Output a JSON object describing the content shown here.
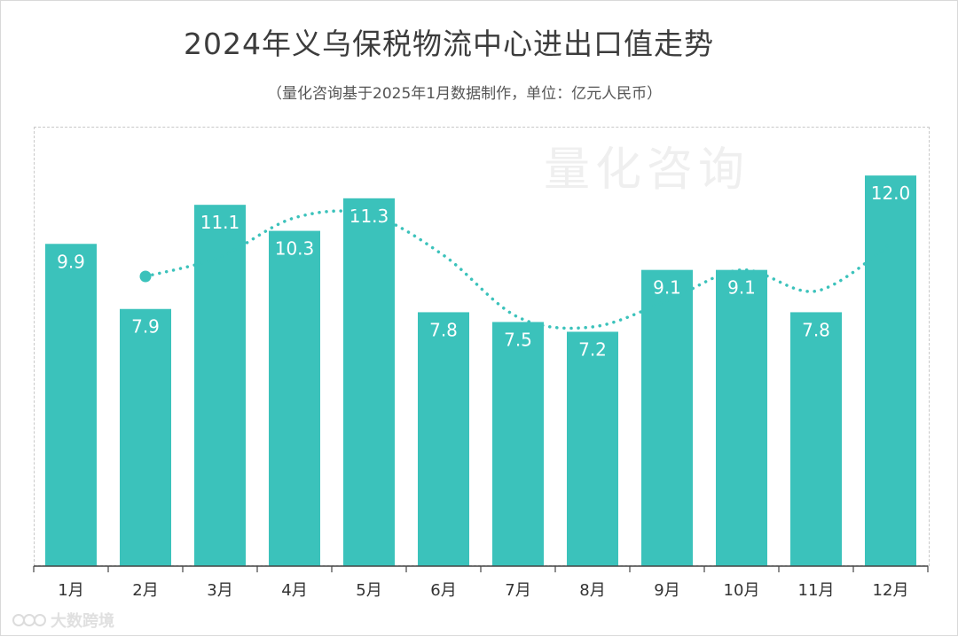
{
  "title": "2024年义乌保税物流中心进出口值走势",
  "subtitle": "（量化咨询基于2025年1月数据制作，单位：亿元人民币）",
  "watermark": "量化咨询",
  "brand": {
    "icon": "dashu-logo-icon",
    "text": "大数跨境"
  },
  "colors": {
    "bar": "#3bc2bb",
    "trend": "#3bc2bb",
    "label": "#ffffff",
    "axis_text": "#333333",
    "axis_line": "#444444"
  },
  "chart_data": {
    "type": "bar",
    "categories": [
      "1月",
      "2月",
      "3月",
      "4月",
      "5月",
      "6月",
      "7月",
      "8月",
      "9月",
      "10月",
      "11月",
      "12月"
    ],
    "values": [
      9.9,
      7.9,
      11.1,
      10.3,
      11.3,
      7.8,
      7.5,
      7.2,
      9.1,
      9.1,
      7.8,
      12.0
    ],
    "data_labels": [
      "9.9",
      "7.9",
      "11.1",
      "10.3",
      "11.3",
      "7.8",
      "7.5",
      "7.2",
      "9.1",
      "9.1",
      "7.8",
      "12.0"
    ],
    "trendline": {
      "style": "dotted",
      "type": "moving-average"
    },
    "ylim": [
      0,
      13.5
    ],
    "grid": false,
    "legend": "none",
    "xlabel": "",
    "ylabel": ""
  }
}
